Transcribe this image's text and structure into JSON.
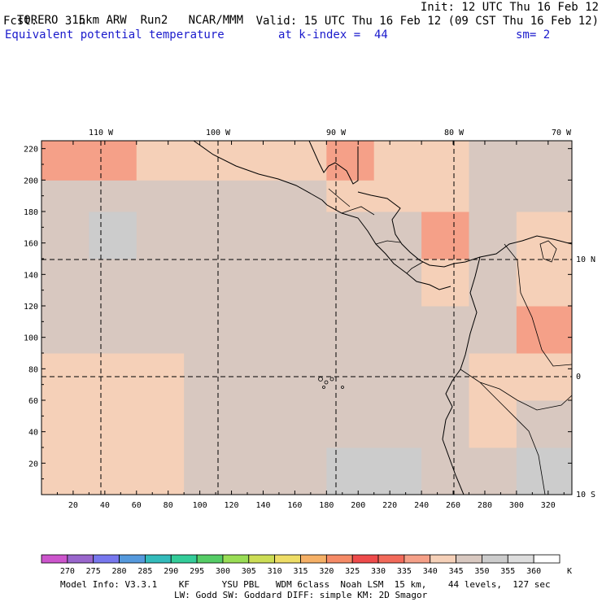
{
  "header": {
    "model": "TORERO",
    "resolution": "15km ARW",
    "run": "Run2",
    "org": "NCAR/MMM",
    "init": "Init: 12 UTC Thu 16 Feb 12",
    "fcst_label": "Fcst.",
    "fcst_value": "3 h",
    "valid": "Valid: 15 UTC Thu 16 Feb 12 (09 CST Thu 16 Feb 12)",
    "field": "Equivalent potential temperature",
    "level": "at k-index =  44",
    "smooth": "sm= 2"
  },
  "map": {
    "top_lon_labels": [
      "110 W",
      "100 W",
      "90 W",
      "80 W",
      "70 W"
    ],
    "right_lat_labels": [
      "10 N",
      "0",
      "10 S"
    ],
    "y_ticks": [
      "20",
      "40",
      "60",
      "80",
      "100",
      "120",
      "140",
      "160",
      "180",
      "200",
      "220"
    ],
    "x_ticks": [
      "20",
      "40",
      "60",
      "80",
      "100",
      "120",
      "140",
      "160",
      "180",
      "200",
      "220",
      "240",
      "260",
      "280",
      "300",
      "320"
    ]
  },
  "chart_data": {
    "type": "heatmap",
    "title": "Equivalent potential temperature",
    "x_range": [
      0,
      335
    ],
    "y_range": [
      0,
      225
    ],
    "x_grid": [
      0,
      30,
      60,
      90,
      120,
      150,
      180,
      210,
      240,
      270,
      300,
      335
    ],
    "y_grid": [
      0,
      30,
      60,
      90,
      120,
      150,
      180,
      200,
      225
    ],
    "values": [
      [
        340,
        340,
        340,
        345,
        345,
        345,
        350,
        350,
        345,
        345,
        350,
        355
      ],
      [
        340,
        340,
        340,
        345,
        345,
        345,
        345,
        345,
        345,
        340,
        345,
        350
      ],
      [
        340,
        340,
        340,
        345,
        345,
        345,
        345,
        345,
        345,
        340,
        340,
        345
      ],
      [
        345,
        345,
        345,
        345,
        345,
        345,
        345,
        345,
        345,
        345,
        335,
        340
      ],
      [
        345,
        345,
        345,
        345,
        345,
        345,
        345,
        345,
        340,
        345,
        340,
        335
      ],
      [
        345,
        350,
        345,
        345,
        345,
        345,
        345,
        345,
        335,
        345,
        340,
        335
      ],
      [
        345,
        345,
        345,
        345,
        345,
        345,
        340,
        340,
        340,
        345,
        345,
        340
      ],
      [
        335,
        335,
        340,
        340,
        340,
        340,
        335,
        340,
        340,
        345,
        345,
        345
      ],
      [
        330,
        330,
        335,
        330,
        335,
        335,
        340,
        340,
        340,
        345,
        345,
        345
      ]
    ],
    "colorbar": {
      "levels": [
        "270",
        "275",
        "280",
        "285",
        "290",
        "295",
        "300",
        "305",
        "310",
        "315",
        "320",
        "325",
        "330",
        "335",
        "340",
        "345",
        "350",
        "355",
        "360"
      ],
      "unit": "K",
      "colors": [
        "#cc55cc",
        "#9966cc",
        "#7777ee",
        "#5599dd",
        "#33bbbb",
        "#33cc99",
        "#55cc66",
        "#99dd55",
        "#ccdd55",
        "#eedd66",
        "#f5b066",
        "#f58a66",
        "#ee4b4b",
        "#f26a5a",
        "#f5a088",
        "#f5d0b8",
        "#d8c8c0",
        "#cccccc",
        "#dddddd",
        "#ffffff"
      ]
    }
  },
  "footer": {
    "line1": "Model Info: V3.3.1    KF      YSU PBL   WDM 6class  Noah LSM  15 km,    44 levels,  127 sec",
    "line2": "LW: Godd SW: Goddard DIFF: simple KM: 2D Smagor"
  }
}
